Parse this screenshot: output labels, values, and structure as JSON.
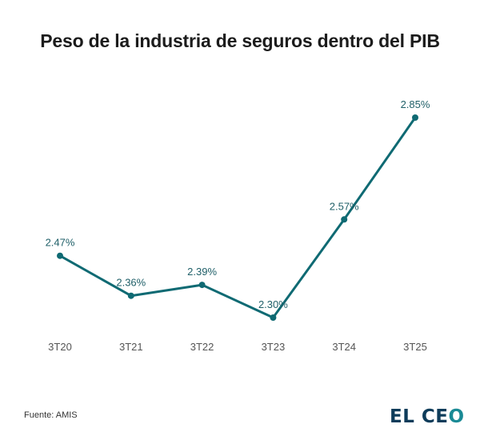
{
  "title": "Peso de la industria de seguros dentro del PIB",
  "source": "Fuente: AMIS",
  "logo": {
    "main": "EL CE",
    "accent": "O"
  },
  "colors": {
    "line": "#0f6a73",
    "label": "#1f5f68",
    "axis_label": "#555555",
    "logo_dark": "#0e3c5a",
    "logo_accent": "#1a8a95"
  },
  "chart_data": {
    "type": "line",
    "title": "Peso de la industria de seguros dentro del PIB",
    "xlabel": "",
    "ylabel": "",
    "categories": [
      "3T20",
      "3T21",
      "3T22",
      "3T23",
      "3T24",
      "3T25"
    ],
    "values": [
      2.47,
      2.36,
      2.39,
      2.3,
      2.57,
      2.85
    ],
    "data_labels": [
      "2.47%",
      "2.36%",
      "2.39%",
      "2.30%",
      "2.57%",
      "2.85%"
    ],
    "unit": "%",
    "ylim": [
      2.3,
      2.85
    ],
    "grid": false,
    "legend": "none"
  }
}
